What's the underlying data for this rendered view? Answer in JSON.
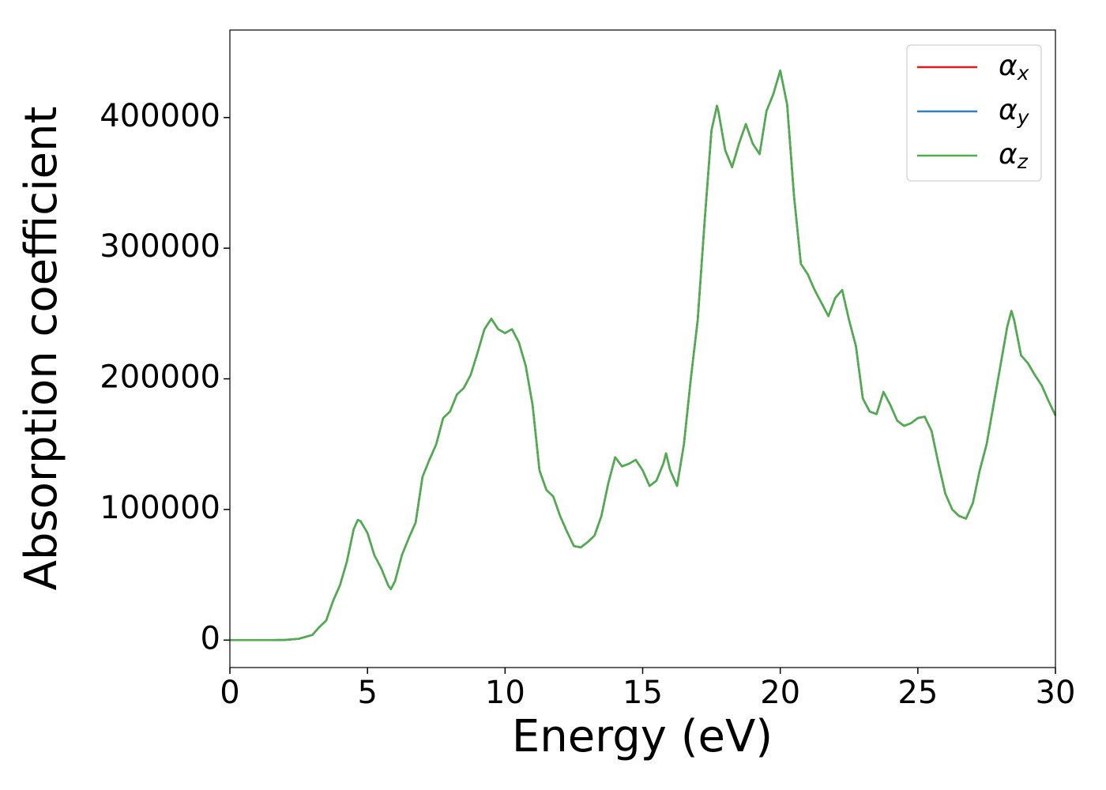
{
  "chart_data": {
    "type": "line",
    "xlabel": "Energy (eV)",
    "ylabel": "Absorption coefficient",
    "x": [
      0,
      0.5,
      1,
      1.5,
      2,
      2.5,
      3,
      3.25,
      3.5,
      3.75,
      4,
      4.25,
      4.5,
      4.65,
      4.75,
      5,
      5.25,
      5.5,
      5.75,
      5.85,
      6,
      6.25,
      6.5,
      6.75,
      7,
      7.25,
      7.5,
      7.75,
      8,
      8.25,
      8.5,
      8.75,
      9,
      9.25,
      9.5,
      9.75,
      10,
      10.25,
      10.5,
      10.75,
      11,
      11.25,
      11.5,
      11.75,
      12,
      12.25,
      12.5,
      12.75,
      13,
      13.25,
      13.5,
      13.75,
      14,
      14.25,
      14.5,
      14.75,
      15,
      15.25,
      15.5,
      15.75,
      15.85,
      16,
      16.25,
      16.5,
      16.75,
      17,
      17.25,
      17.5,
      17.7,
      17.75,
      18,
      18.25,
      18.5,
      18.75,
      19,
      19.25,
      19.5,
      19.75,
      20,
      20.25,
      20.5,
      20.75,
      21,
      21.25,
      21.5,
      21.75,
      22,
      22.25,
      22.5,
      22.75,
      23,
      23.25,
      23.5,
      23.75,
      24,
      24.25,
      24.5,
      24.75,
      25,
      25.25,
      25.5,
      25.75,
      26,
      26.25,
      26.5,
      26.75,
      27,
      27.25,
      27.5,
      27.75,
      28,
      28.25,
      28.4,
      28.5,
      28.75,
      29,
      29.25,
      29.5,
      29.75,
      30
    ],
    "series": [
      {
        "name": "αx",
        "color": "#e41a1c",
        "values": [
          0,
          0,
          0,
          0,
          200,
          1000,
          4000,
          10000,
          15000,
          30000,
          42000,
          60000,
          85000,
          92000,
          91000,
          82000,
          65000,
          55000,
          42000,
          39000,
          45000,
          65000,
          78000,
          90000,
          125000,
          138000,
          150000,
          170000,
          175000,
          188000,
          193000,
          203000,
          220000,
          238000,
          246000,
          238000,
          235000,
          238000,
          228000,
          210000,
          180000,
          130000,
          115000,
          110000,
          95000,
          83000,
          72000,
          71000,
          75000,
          80000,
          95000,
          120000,
          140000,
          133000,
          135000,
          138000,
          130000,
          118000,
          122000,
          135000,
          143000,
          130000,
          118000,
          150000,
          200000,
          245000,
          320000,
          390000,
          409000,
          405000,
          375000,
          362000,
          380000,
          395000,
          380000,
          372000,
          405000,
          418000,
          436000,
          410000,
          340000,
          288000,
          280000,
          268000,
          258000,
          248000,
          262000,
          268000,
          245000,
          225000,
          185000,
          175000,
          173000,
          190000,
          180000,
          168000,
          164000,
          166000,
          170000,
          171000,
          160000,
          135000,
          112000,
          100000,
          95000,
          93000,
          105000,
          130000,
          150000,
          180000,
          210000,
          240000,
          252000,
          245000,
          218000,
          212000,
          203000,
          195000,
          183000,
          172000
        ]
      },
      {
        "name": "αy",
        "color": "#377eb8",
        "values": [
          0,
          0,
          0,
          0,
          200,
          1000,
          4000,
          10000,
          15000,
          30000,
          42000,
          60000,
          85000,
          92000,
          91000,
          82000,
          65000,
          55000,
          42000,
          39000,
          45000,
          65000,
          78000,
          90000,
          125000,
          138000,
          150000,
          170000,
          175000,
          188000,
          193000,
          203000,
          220000,
          238000,
          246000,
          238000,
          235000,
          238000,
          228000,
          210000,
          180000,
          130000,
          115000,
          110000,
          95000,
          83000,
          72000,
          71000,
          75000,
          80000,
          95000,
          120000,
          140000,
          133000,
          135000,
          138000,
          130000,
          118000,
          122000,
          135000,
          143000,
          130000,
          118000,
          150000,
          200000,
          245000,
          320000,
          390000,
          409000,
          405000,
          375000,
          362000,
          380000,
          395000,
          380000,
          372000,
          405000,
          418000,
          436000,
          410000,
          340000,
          288000,
          280000,
          268000,
          258000,
          248000,
          262000,
          268000,
          245000,
          225000,
          185000,
          175000,
          173000,
          190000,
          180000,
          168000,
          164000,
          166000,
          170000,
          171000,
          160000,
          135000,
          112000,
          100000,
          95000,
          93000,
          105000,
          130000,
          150000,
          180000,
          210000,
          240000,
          252000,
          245000,
          218000,
          212000,
          203000,
          195000,
          183000,
          172000
        ]
      },
      {
        "name": "αz",
        "color": "#4daf4a",
        "values": [
          0,
          0,
          0,
          0,
          200,
          1000,
          4000,
          10000,
          15000,
          30000,
          42000,
          60000,
          85000,
          92000,
          91000,
          82000,
          65000,
          55000,
          42000,
          39000,
          45000,
          65000,
          78000,
          90000,
          125000,
          138000,
          150000,
          170000,
          175000,
          188000,
          193000,
          203000,
          220000,
          238000,
          246000,
          238000,
          235000,
          238000,
          228000,
          210000,
          180000,
          130000,
          115000,
          110000,
          95000,
          83000,
          72000,
          71000,
          75000,
          80000,
          95000,
          120000,
          140000,
          133000,
          135000,
          138000,
          130000,
          118000,
          122000,
          135000,
          143000,
          130000,
          118000,
          150000,
          200000,
          245000,
          320000,
          390000,
          409000,
          405000,
          375000,
          362000,
          380000,
          395000,
          380000,
          372000,
          405000,
          418000,
          436000,
          410000,
          340000,
          288000,
          280000,
          268000,
          258000,
          248000,
          262000,
          268000,
          245000,
          225000,
          185000,
          175000,
          173000,
          190000,
          180000,
          168000,
          164000,
          166000,
          170000,
          171000,
          160000,
          135000,
          112000,
          100000,
          95000,
          93000,
          105000,
          130000,
          150000,
          180000,
          210000,
          240000,
          252000,
          245000,
          218000,
          212000,
          203000,
          195000,
          183000,
          172000
        ]
      }
    ],
    "xlim": [
      0,
      30
    ],
    "xticks": [
      0,
      5,
      10,
      15,
      20,
      25,
      30
    ],
    "ylim": [
      -21000,
      467000
    ],
    "yticks": [
      0,
      100000,
      200000,
      300000,
      400000
    ],
    "legend": "upper right"
  }
}
